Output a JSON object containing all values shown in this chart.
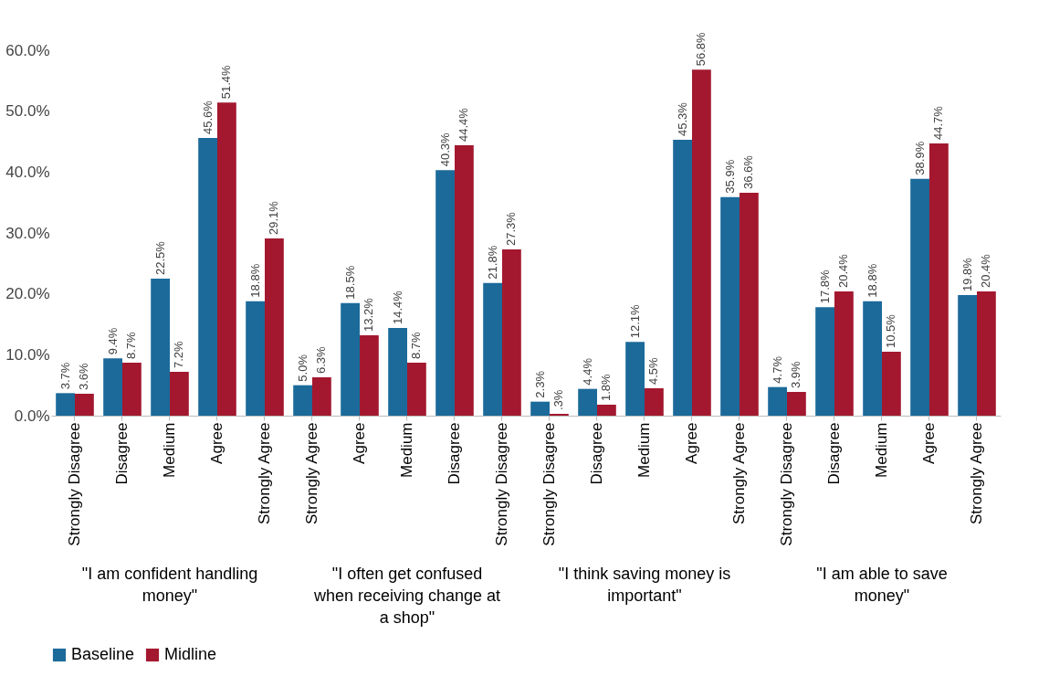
{
  "chart_data": {
    "type": "bar",
    "categories": [
      "Strongly Disagree",
      "Disagree",
      "Medium",
      "Agree",
      "Strongly Agree",
      "Strongly Agree",
      "Agree",
      "Medium",
      "Disagree",
      "Strongly Disagree",
      "Strongly Disagree",
      "Disagree",
      "Medium",
      "Agree",
      "Strongly Agree",
      "Strongly Disagree",
      "Disagree",
      "Medium",
      "Agree",
      "Strongly Agree"
    ],
    "series": [
      {
        "name": "Baseline",
        "color": "#1b6a9a",
        "values": [
          3.7,
          9.4,
          22.5,
          45.6,
          18.8,
          5.0,
          18.5,
          14.4,
          40.3,
          21.8,
          2.3,
          4.4,
          12.1,
          45.3,
          35.9,
          4.7,
          17.8,
          18.8,
          38.9,
          19.8
        ],
        "value_labels": [
          "3.7%",
          "9.4%",
          "22.5%",
          "45.6%",
          "18.8%",
          "5.0%",
          "18.5%",
          "14.4%",
          "40.3%",
          "21.8%",
          "2.3%",
          "4.4%",
          "12.1%",
          "45.3%",
          "35.9%",
          "4.7%",
          "17.8%",
          "18.8%",
          "38.9%",
          "19.8%"
        ]
      },
      {
        "name": "Midline",
        "color": "#a3182f",
        "values": [
          3.6,
          8.7,
          7.2,
          51.4,
          29.1,
          6.3,
          13.2,
          8.7,
          44.4,
          27.3,
          0.3,
          1.8,
          4.5,
          56.8,
          36.6,
          3.9,
          20.4,
          10.5,
          44.7,
          20.4
        ],
        "value_labels": [
          "3.6%",
          "8.7%",
          "7.2%",
          "51.4%",
          "29.1%",
          "6.3%",
          "13.2%",
          "8.7%",
          "44.4%",
          "27.3%",
          ".3%",
          "1.8%",
          "4.5%",
          "56.8%",
          "36.6%",
          "3.9%",
          "20.4%",
          "10.5%",
          "44.7%",
          "20.4%"
        ]
      }
    ],
    "annotations": [
      "\"I am confident handling money\"",
      "\"I often get confused when receiving change at a shop\"",
      "\"I think saving money is important\"",
      "\"I am able to save money\""
    ],
    "ylim": [
      0,
      60
    ],
    "yticks": [
      {
        "value": 0,
        "label": "0.0%"
      },
      {
        "value": 10,
        "label": "10.0%"
      },
      {
        "value": 20,
        "label": "20.0%"
      },
      {
        "value": 30,
        "label": "30.0%"
      },
      {
        "value": 40,
        "label": "40.0%"
      },
      {
        "value": 50,
        "label": "50.0%"
      },
      {
        "value": 60,
        "label": "60.0%"
      }
    ],
    "legend": "bottom"
  }
}
